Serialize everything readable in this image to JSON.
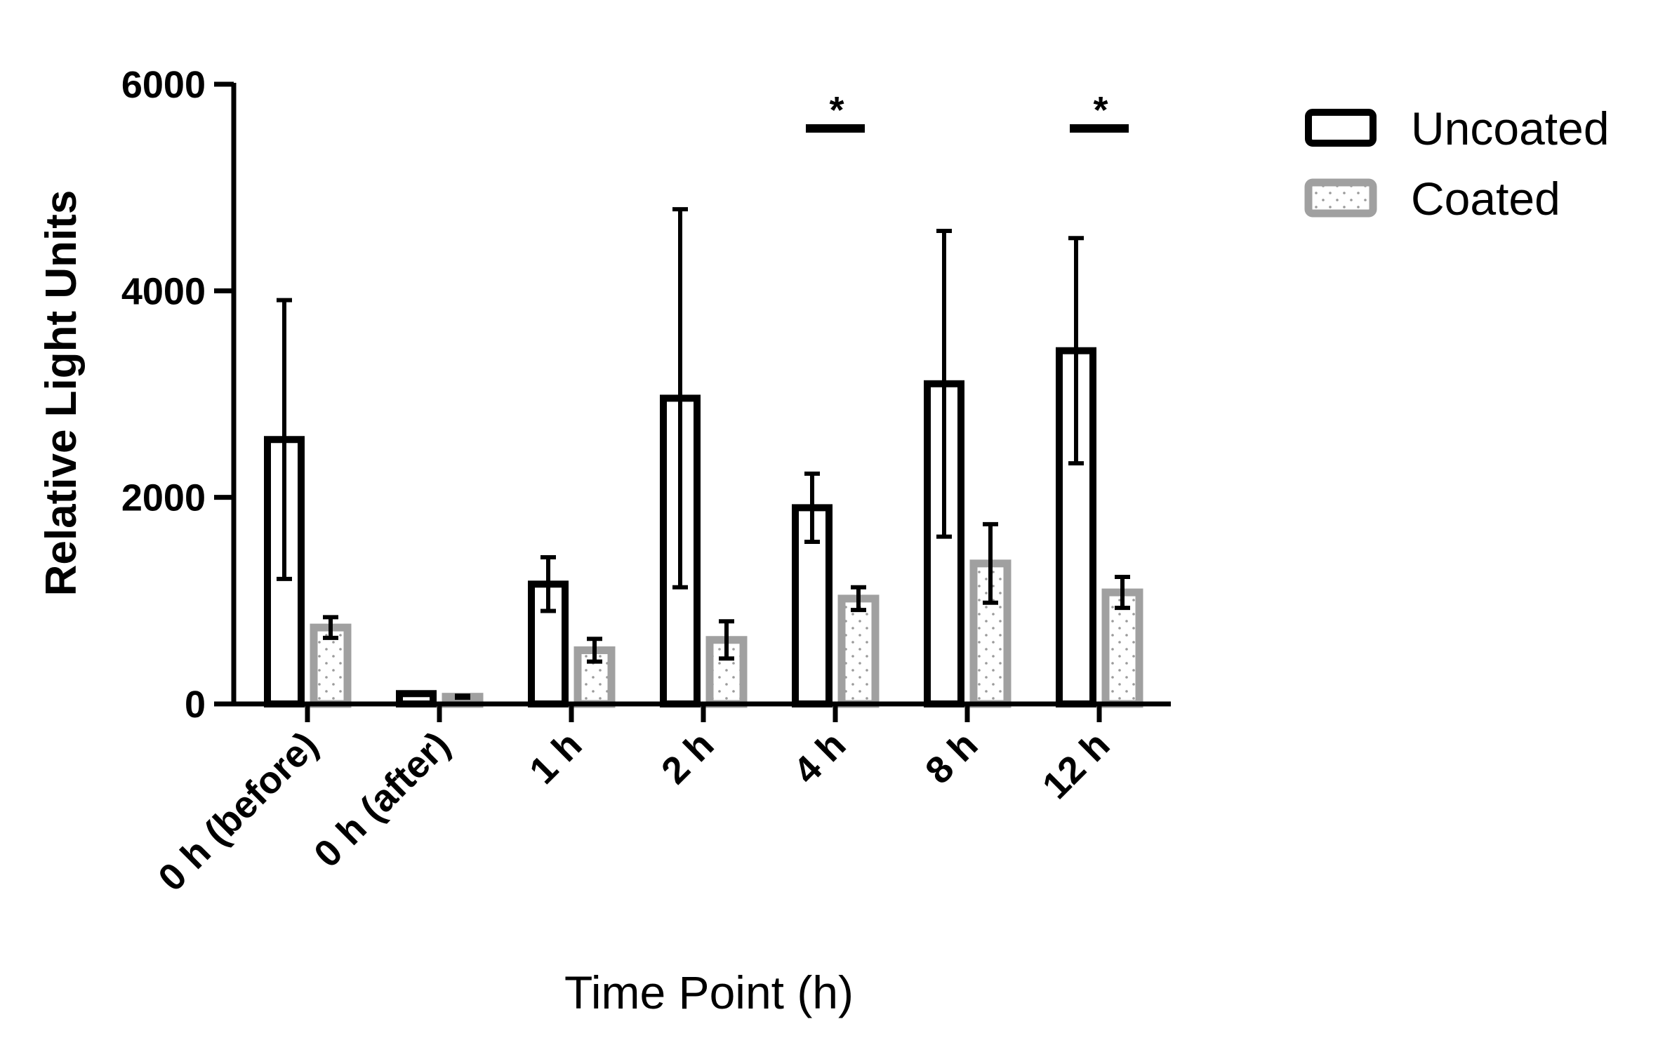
{
  "chart_data": {
    "type": "bar",
    "title": "",
    "xlabel": "Time Point (h)",
    "ylabel": "Relative Light Units",
    "ylim": [
      0,
      6000
    ],
    "yticks": [
      0,
      2000,
      4000,
      6000
    ],
    "tick_labels": [
      "0",
      "2000",
      "4000",
      "6000"
    ],
    "categories": [
      "0 h (before)",
      "0 h (after)",
      "1 h",
      "2 h",
      "4 h",
      "8 h",
      "12 h"
    ],
    "series": [
      {
        "name": "Uncoated",
        "values": [
          2560,
          100,
          1160,
          2960,
          1900,
          3100,
          3420
        ],
        "errors": [
          1350,
          10,
          260,
          1830,
          330,
          1480,
          1090
        ],
        "stroke": "#000000",
        "fill": "#ffffff",
        "pattern": "none"
      },
      {
        "name": "Coated",
        "values": [
          740,
          70,
          520,
          620,
          1020,
          1360,
          1080
        ],
        "errors": [
          100,
          10,
          110,
          180,
          110,
          380,
          150
        ],
        "stroke": "#a0a0a0",
        "fill": "#ffffff",
        "pattern": "dots"
      }
    ],
    "significance": [
      {
        "category": "4 h",
        "label": "*"
      },
      {
        "category": "12 h",
        "label": "*"
      }
    ],
    "grid": false,
    "legend_position": "top-right"
  }
}
